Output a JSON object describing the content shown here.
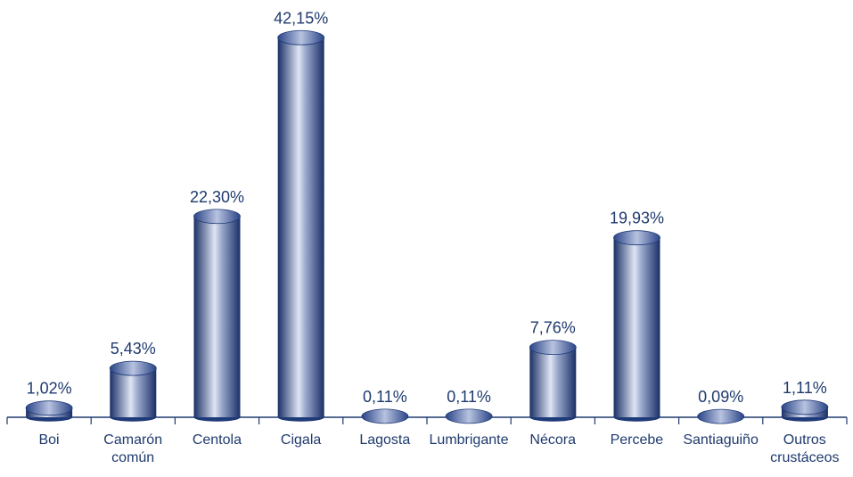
{
  "chart_data": {
    "type": "bar",
    "categories": [
      "Boi",
      "Camarón común",
      "Centola",
      "Cigala",
      "Lagosta",
      "Lumbrigante",
      "Nécora",
      "Percebe",
      "Santiaguiño",
      "Outros crustáceos"
    ],
    "values": [
      1.02,
      5.43,
      22.3,
      42.15,
      0.11,
      0.11,
      7.76,
      19.93,
      0.09,
      1.11
    ],
    "value_labels": [
      "1,02%",
      "5,43%",
      "22,30%",
      "42,15%",
      "0,11%",
      "0,11%",
      "7,76%",
      "19,93%",
      "0,09%",
      "1,11%"
    ],
    "color": "#1f3a78"
  }
}
